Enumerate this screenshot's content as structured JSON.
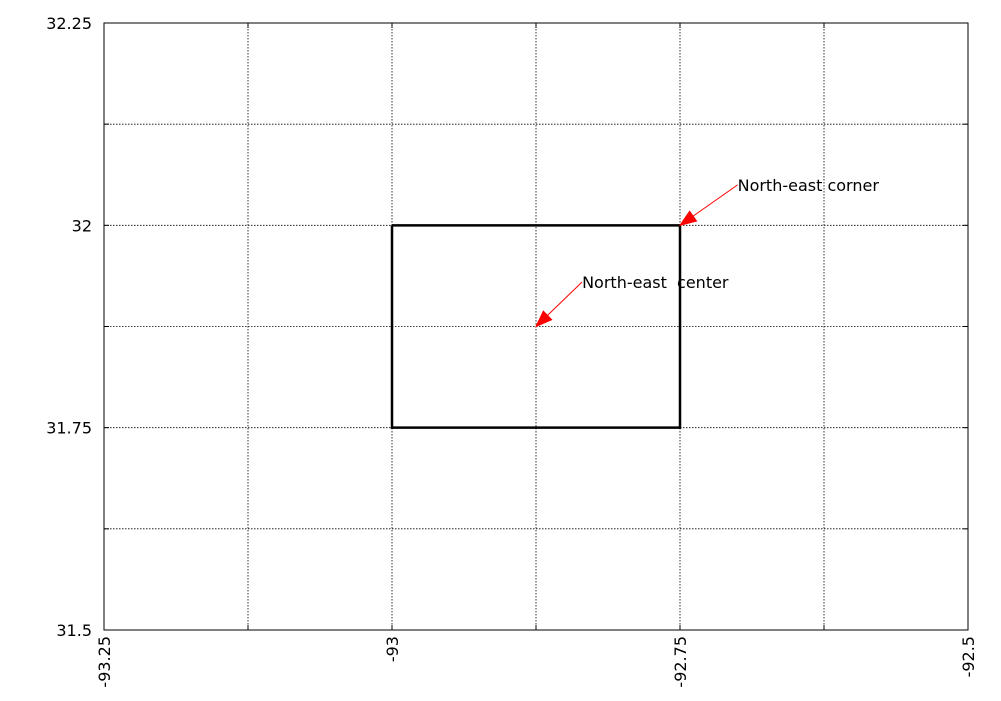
{
  "chart_data": {
    "type": "line",
    "title": "",
    "xlabel": "",
    "ylabel": "",
    "xlim": [
      -93.25,
      -92.5
    ],
    "ylim": [
      31.5,
      32.25
    ],
    "grid": true,
    "x_ticks": [
      -93.25,
      -93.125,
      -93.0,
      -92.875,
      -92.75,
      -92.625,
      -92.5
    ],
    "y_ticks": [
      31.5,
      31.625,
      31.75,
      31.875,
      32.0,
      32.125,
      32.25
    ],
    "x_tick_labels": [
      {
        "value": -93.25,
        "label": "-93.25"
      },
      {
        "value": -93.0,
        "label": "-93"
      },
      {
        "value": -92.75,
        "label": "-92.75"
      },
      {
        "value": -92.5,
        "label": "-92.5"
      }
    ],
    "y_tick_labels": [
      {
        "value": 32.25,
        "label": "32.25"
      },
      {
        "value": 32.0,
        "label": "32"
      },
      {
        "value": 31.75,
        "label": "31.75"
      },
      {
        "value": 31.5,
        "label": "31.5"
      }
    ],
    "series": [
      {
        "x": [
          -93.0,
          -92.75,
          -92.75,
          -93.0,
          -93.0
        ],
        "y": [
          32.0,
          32.0,
          31.75,
          31.75,
          32.0
        ],
        "color": "#000000"
      }
    ],
    "annotations": [
      {
        "text": "North-east corner",
        "text_x": -92.7,
        "text_y": 32.05,
        "arrow_x": -92.75,
        "arrow_y": 32.0,
        "color": "#ff0000"
      },
      {
        "text": "North-east  center",
        "text_x": -92.835,
        "text_y": 31.93,
        "arrow_x": -92.875,
        "arrow_y": 31.875,
        "color": "#ff0000"
      }
    ]
  }
}
